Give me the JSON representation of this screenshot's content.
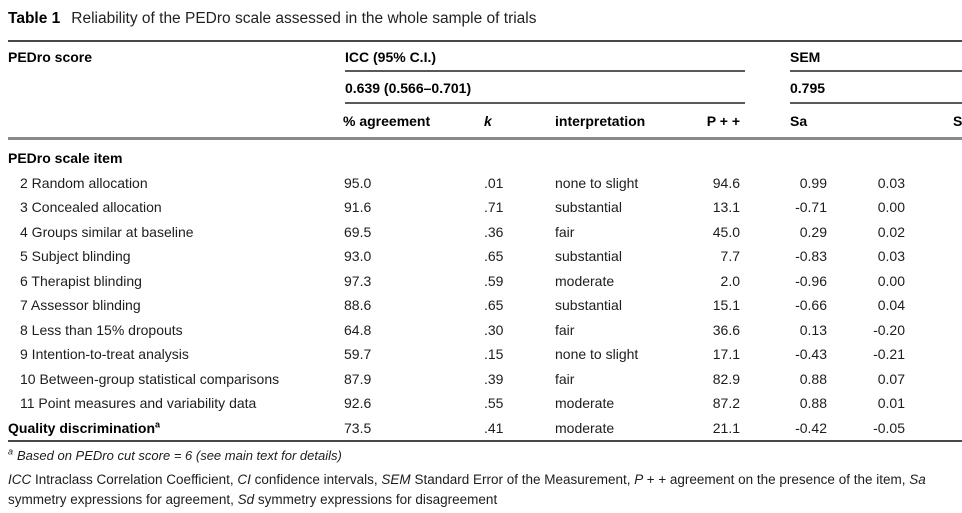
{
  "title": {
    "label": "Table 1",
    "text": "Reliability of the PEDro scale assessed in the whole sample of trials"
  },
  "header": {
    "row_label": "PEDro score",
    "icc": {
      "label": "ICC (95% C.I.)",
      "value": "0.639 (0.566–0.701)"
    },
    "sem": {
      "label": "SEM",
      "value": "0.795"
    },
    "columns": {
      "agreement": "% agreement",
      "k": "k",
      "interpretation": "interpretation",
      "ppp": "P + +",
      "sa": "Sa",
      "sd_truncated": "S"
    }
  },
  "body": {
    "rows": [
      {
        "type": "section",
        "label": "PEDro scale item"
      },
      {
        "label": "2 Random allocation",
        "agreement": "95.0",
        "k": ".01",
        "interpretation": "none to slight",
        "ppp": "94.6",
        "sa": "0.99",
        "sd": "0.03"
      },
      {
        "label": "3 Concealed allocation",
        "agreement": "91.6",
        "k": ".71",
        "interpretation": "substantial",
        "ppp": "13.1",
        "sa": "-0.71",
        "sd": "0.00"
      },
      {
        "label": "4 Groups similar at baseline",
        "agreement": "69.5",
        "k": ".36",
        "interpretation": "fair",
        "ppp": "45.0",
        "sa": "0.29",
        "sd": "0.02"
      },
      {
        "label": "5 Subject blinding",
        "agreement": "93.0",
        "k": ".65",
        "interpretation": "substantial",
        "ppp": "7.7",
        "sa": "-0.83",
        "sd": "0.03"
      },
      {
        "label": "6 Therapist blinding",
        "agreement": "97.3",
        "k": ".59",
        "interpretation": "moderate",
        "ppp": "2.0",
        "sa": "-0.96",
        "sd": "0.00"
      },
      {
        "label": "7 Assessor blinding",
        "agreement": "88.6",
        "k": ".65",
        "interpretation": "substantial",
        "ppp": "15.1",
        "sa": "-0.66",
        "sd": "0.04"
      },
      {
        "label": "8 Less than 15% dropouts",
        "agreement": "64.8",
        "k": ".30",
        "interpretation": "fair",
        "ppp": "36.6",
        "sa": "0.13",
        "sd": "-0.20"
      },
      {
        "label": "9 Intention-to-treat analysis",
        "agreement": "59.7",
        "k": ".15",
        "interpretation": "none to slight",
        "ppp": "17.1",
        "sa": "-0.43",
        "sd": "-0.21"
      },
      {
        "label": "10 Between-group statistical comparisons",
        "agreement": "87.9",
        "k": ".39",
        "interpretation": "fair",
        "ppp": "82.9",
        "sa": "0.88",
        "sd": "0.07"
      },
      {
        "label": "11 Point measures and variability data",
        "agreement": "92.6",
        "k": ".55",
        "interpretation": "moderate",
        "ppp": "87.2",
        "sa": "0.88",
        "sd": "0.01"
      },
      {
        "type": "total",
        "label": "Quality discrimination",
        "sup": "a",
        "agreement": "73.5",
        "k": ".41",
        "interpretation": "moderate",
        "ppp": "21.1",
        "sa": "-0.42",
        "sd": "-0.05"
      }
    ]
  },
  "footnotes": {
    "a": {
      "marker": "a",
      "text": "Based on PEDro cut score = 6 (see main text for details)"
    },
    "definitions": [
      {
        "term": "ICC",
        "def": "Intraclass Correlation Coefficient"
      },
      {
        "term": "CI",
        "def": "confidence intervals"
      },
      {
        "term": "SEM",
        "def": "Standard Error of the Measurement"
      },
      {
        "term": "P + +",
        "def": "agreement on the presence of the item"
      },
      {
        "term": "Sa",
        "def": "symmetry expressions for agreement"
      },
      {
        "term": "Sd",
        "def": "symmetry expressions for disagreement"
      }
    ]
  }
}
